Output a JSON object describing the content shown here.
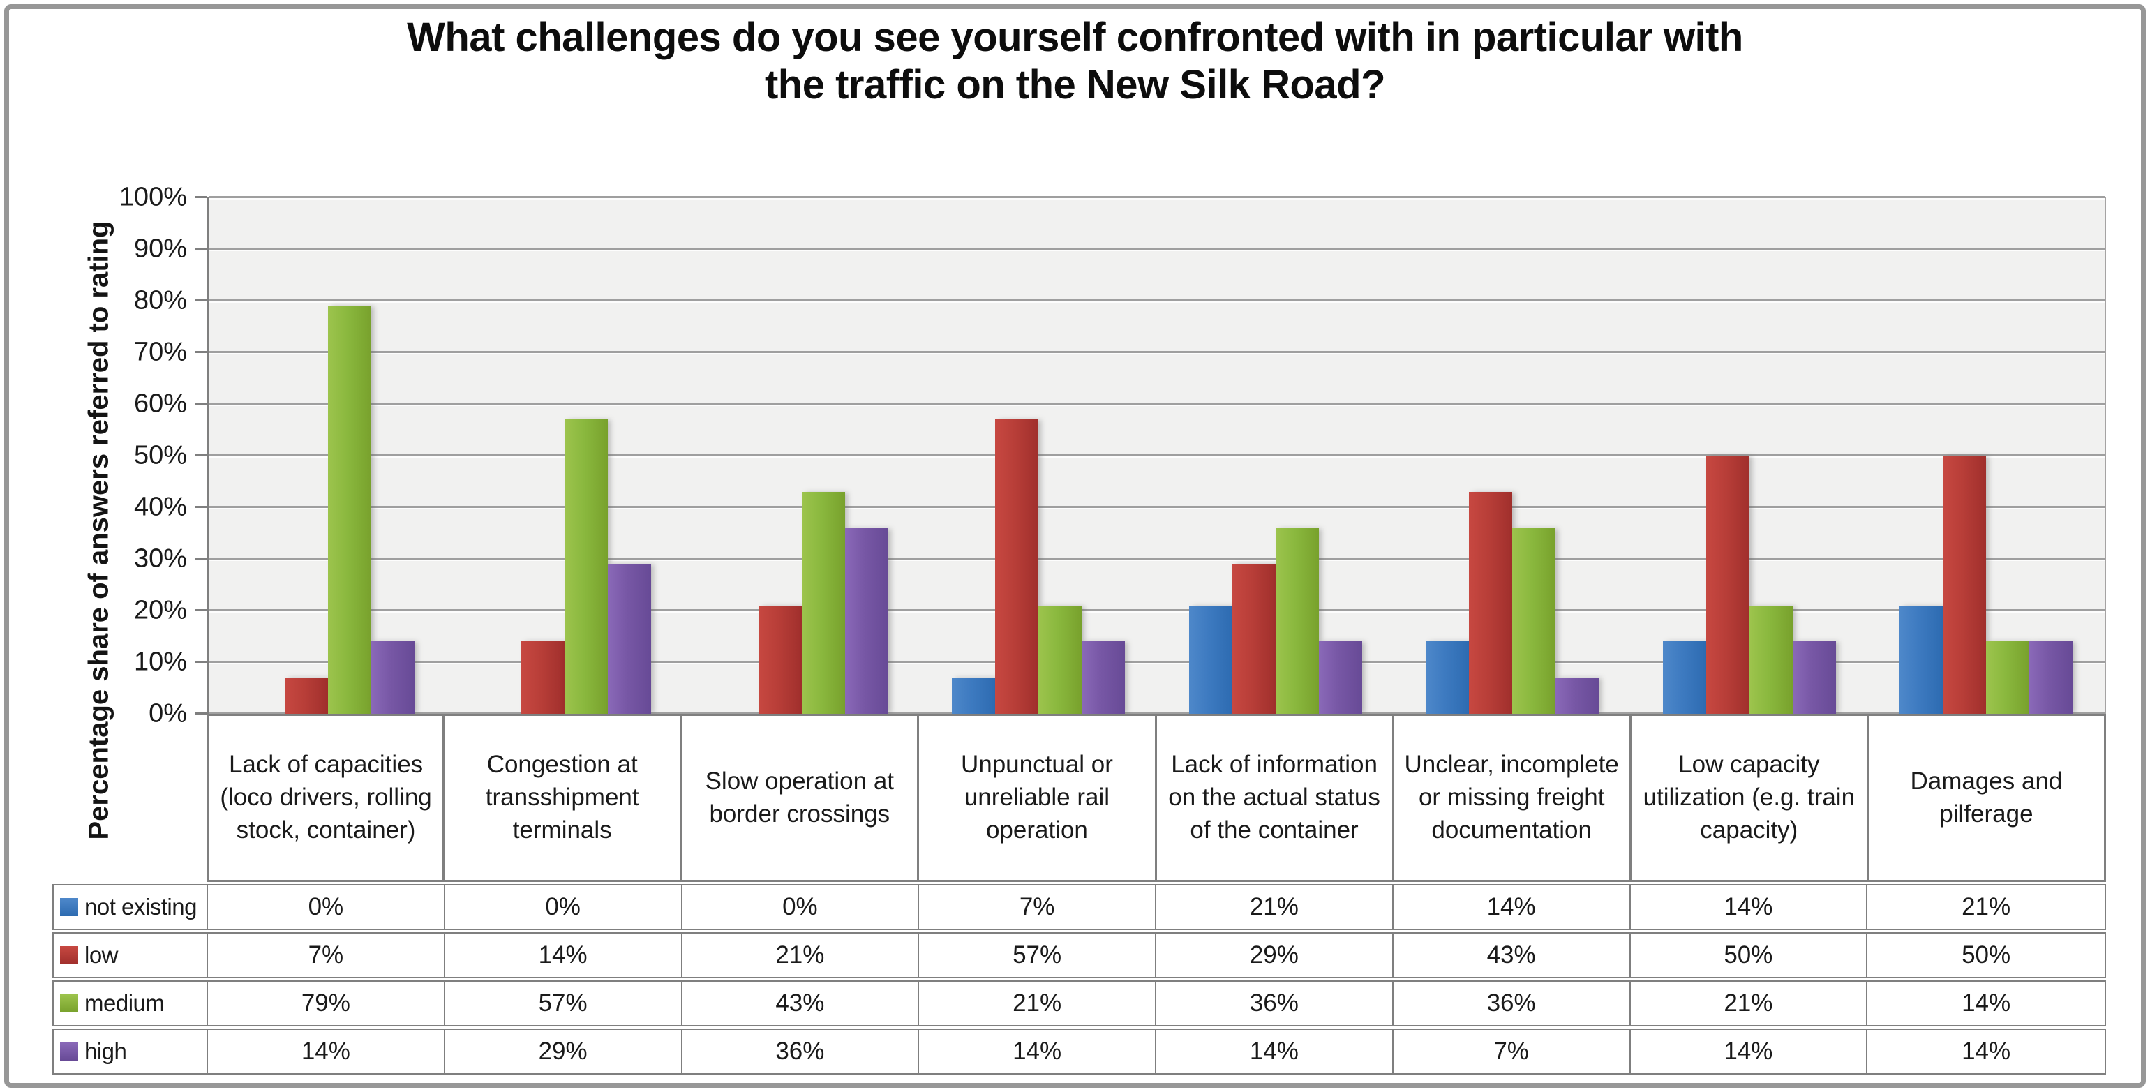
{
  "figure": {
    "title": "What challenges do you see yourself confronted with in particular with the traffic on the New Silk Road?",
    "title_line1": "What challenges do you see yourself confronted with in particular with",
    "title_line2": "the traffic on the New Silk Road?"
  },
  "chart_data": {
    "type": "bar",
    "title": "What challenges do you see yourself confronted with in particular with the traffic on the New Silk Road?",
    "xlabel": "",
    "ylabel": "Percentage share of answers referred to rating",
    "ylim": [
      0,
      100
    ],
    "y_tick_step": 10,
    "y_tick_labels": [
      "0%",
      "10%",
      "20%",
      "30%",
      "40%",
      "50%",
      "60%",
      "70%",
      "80%",
      "90%",
      "100%"
    ],
    "grid": "horizontal",
    "legend_position": "data-table-left",
    "categories": [
      "Lack of capacities (loco drivers, rolling stock, container)",
      "Congestion at transshipment terminals",
      "Slow operation at border crossings",
      "Unpunctual or unreliable rail operation",
      "Lack of information on the actual status of the container",
      "Unclear, incomplete or missing freight documentation",
      "Low capacity utilization (e.g. train capacity)",
      "Damages and pilferage"
    ],
    "series": [
      {
        "name": "not existing",
        "color": "#3D7AC0",
        "color_light": "#4E88CA",
        "color_dark": "#2D6BB1",
        "values": [
          0,
          0,
          0,
          7,
          21,
          14,
          14,
          21
        ],
        "display_values": [
          "0%",
          "0%",
          "0%",
          "7%",
          "21%",
          "14%",
          "14%",
          "21%"
        ]
      },
      {
        "name": "low",
        "color": "#B83E38",
        "color_light": "#C74841",
        "color_dark": "#A02F2C",
        "values": [
          7,
          14,
          21,
          57,
          29,
          43,
          50,
          50
        ],
        "display_values": [
          "7%",
          "14%",
          "21%",
          "57%",
          "29%",
          "43%",
          "50%",
          "50%"
        ]
      },
      {
        "name": "medium",
        "color": "#8AB83E",
        "color_light": "#9DC44D",
        "color_dark": "#78A12C",
        "values": [
          79,
          57,
          43,
          21,
          36,
          36,
          21,
          14
        ],
        "display_values": [
          "79%",
          "57%",
          "43%",
          "21%",
          "36%",
          "36%",
          "21%",
          "14%"
        ]
      },
      {
        "name": "high",
        "color": "#7757A5",
        "color_light": "#8A69B8",
        "color_dark": "#674A96",
        "values": [
          14,
          29,
          36,
          14,
          14,
          7,
          14,
          14
        ],
        "display_values": [
          "14%",
          "29%",
          "36%",
          "14%",
          "14%",
          "7%",
          "14%",
          "14%"
        ]
      }
    ]
  }
}
